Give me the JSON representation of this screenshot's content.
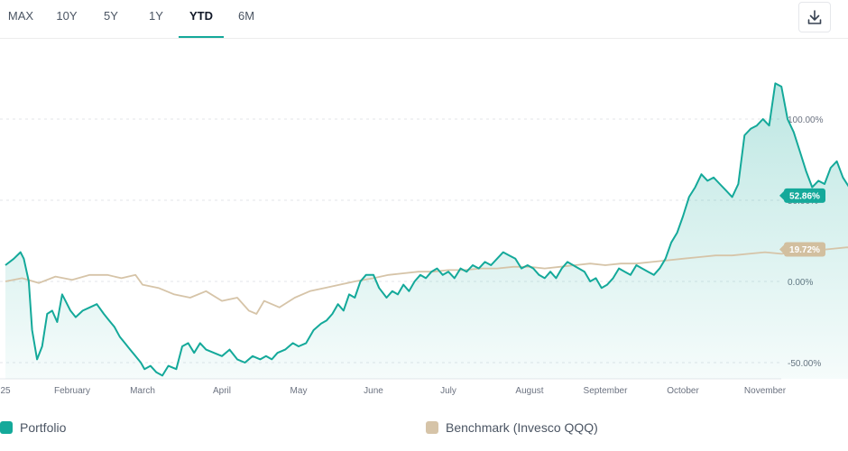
{
  "tabs": [
    {
      "label": "MAX",
      "active": false
    },
    {
      "label": "10Y",
      "active": false
    },
    {
      "label": "5Y",
      "active": false
    },
    {
      "label": "1Y",
      "active": false
    },
    {
      "label": "YTD",
      "active": true
    },
    {
      "label": "6M",
      "active": false
    }
  ],
  "toolbar": {
    "download_icon": "download-icon"
  },
  "colors": {
    "portfolio": "#14a99a",
    "benchmark": "#d6c4a8",
    "portfolio_badge": "#14a99a",
    "benchmark_badge": "#d2bf9f"
  },
  "chart_data": {
    "type": "line",
    "x_tick_labels": [
      "25",
      "February",
      "March",
      "April",
      "May",
      "June",
      "July",
      "August",
      "September",
      "October",
      "November"
    ],
    "y_tick_labels": [
      "100.00%",
      "50.00%",
      "0.00%",
      "-50.00%"
    ],
    "y_ticks": [
      100,
      50,
      0,
      -50
    ],
    "ylim": [
      -60,
      130
    ],
    "grid": true,
    "legend_position": "bottom",
    "series": [
      {
        "name": "Portfolio",
        "last_label": "52.86%",
        "last_value": 52.86,
        "points": [
          [
            0.0,
            10
          ],
          [
            0.25,
            14
          ],
          [
            0.45,
            18
          ],
          [
            0.55,
            14
          ],
          [
            0.7,
            0
          ],
          [
            0.8,
            -30
          ],
          [
            0.95,
            -48
          ],
          [
            1.1,
            -40
          ],
          [
            1.25,
            -20
          ],
          [
            1.4,
            -18
          ],
          [
            1.55,
            -25
          ],
          [
            1.7,
            -8
          ],
          [
            1.8,
            -12
          ],
          [
            1.95,
            -18
          ],
          [
            2.1,
            -22
          ],
          [
            2.3,
            -18
          ],
          [
            2.5,
            -16
          ],
          [
            2.7,
            -14
          ],
          [
            2.9,
            -20
          ],
          [
            3.05,
            -24
          ],
          [
            3.2,
            -28
          ],
          [
            3.35,
            -34
          ],
          [
            3.5,
            -38
          ],
          [
            3.65,
            -42
          ],
          [
            3.8,
            -46
          ],
          [
            3.95,
            -50
          ],
          [
            4.05,
            -54
          ],
          [
            4.2,
            -52
          ],
          [
            4.35,
            -56
          ],
          [
            4.5,
            -58
          ],
          [
            4.65,
            -52
          ],
          [
            4.85,
            -54
          ],
          [
            5.0,
            -40
          ],
          [
            5.15,
            -38
          ],
          [
            5.3,
            -44
          ],
          [
            5.45,
            -38
          ],
          [
            5.6,
            -42
          ],
          [
            5.8,
            -44
          ],
          [
            6.0,
            -46
          ],
          [
            6.2,
            -42
          ],
          [
            6.4,
            -48
          ],
          [
            6.6,
            -50
          ],
          [
            6.8,
            -46
          ],
          [
            7.0,
            -48
          ],
          [
            7.15,
            -46
          ],
          [
            7.3,
            -48
          ],
          [
            7.45,
            -44
          ],
          [
            7.65,
            -42
          ],
          [
            7.85,
            -38
          ],
          [
            8.0,
            -40
          ],
          [
            8.2,
            -38
          ],
          [
            8.4,
            -30
          ],
          [
            8.6,
            -26
          ],
          [
            8.75,
            -24
          ],
          [
            8.9,
            -20
          ],
          [
            9.05,
            -14
          ],
          [
            9.2,
            -18
          ],
          [
            9.35,
            -8
          ],
          [
            9.5,
            -10
          ],
          [
            9.65,
            0
          ],
          [
            9.8,
            4
          ],
          [
            10.0,
            4
          ],
          [
            10.15,
            -4
          ],
          [
            10.35,
            -10
          ],
          [
            10.5,
            -6
          ],
          [
            10.65,
            -8
          ],
          [
            10.8,
            -2
          ],
          [
            10.95,
            -6
          ],
          [
            11.1,
            0
          ],
          [
            11.25,
            4
          ],
          [
            11.4,
            2
          ],
          [
            11.55,
            6
          ],
          [
            11.7,
            8
          ],
          [
            11.85,
            4
          ],
          [
            12.0,
            6
          ],
          [
            12.15,
            2
          ],
          [
            12.3,
            8
          ],
          [
            12.45,
            6
          ],
          [
            12.6,
            10
          ],
          [
            12.75,
            8
          ],
          [
            12.9,
            12
          ],
          [
            13.05,
            10
          ],
          [
            13.2,
            14
          ],
          [
            13.35,
            18
          ],
          [
            13.5,
            16
          ],
          [
            13.65,
            14
          ],
          [
            13.8,
            8
          ],
          [
            13.95,
            10
          ],
          [
            14.1,
            8
          ],
          [
            14.25,
            4
          ],
          [
            14.4,
            2
          ],
          [
            14.55,
            6
          ],
          [
            14.7,
            2
          ],
          [
            14.85,
            8
          ],
          [
            15.0,
            12
          ],
          [
            15.15,
            10
          ],
          [
            15.3,
            8
          ],
          [
            15.45,
            6
          ],
          [
            15.6,
            0
          ],
          [
            15.75,
            2
          ],
          [
            15.9,
            -4
          ],
          [
            16.05,
            -2
          ],
          [
            16.2,
            2
          ],
          [
            16.35,
            8
          ],
          [
            16.5,
            6
          ],
          [
            16.65,
            4
          ],
          [
            16.8,
            10
          ],
          [
            16.95,
            8
          ],
          [
            17.1,
            6
          ],
          [
            17.25,
            4
          ],
          [
            17.4,
            8
          ],
          [
            17.55,
            14
          ],
          [
            17.7,
            24
          ],
          [
            17.85,
            30
          ],
          [
            18.0,
            40
          ],
          [
            18.15,
            52
          ],
          [
            18.3,
            58
          ],
          [
            18.45,
            66
          ],
          [
            18.6,
            62
          ],
          [
            18.75,
            64
          ],
          [
            18.9,
            60
          ],
          [
            19.05,
            56
          ],
          [
            19.2,
            52
          ],
          [
            19.35,
            60
          ],
          [
            19.5,
            90
          ],
          [
            19.65,
            94
          ],
          [
            19.8,
            96
          ],
          [
            19.95,
            100
          ],
          [
            20.1,
            96
          ],
          [
            20.25,
            122
          ],
          [
            20.4,
            120
          ],
          [
            20.55,
            100
          ],
          [
            20.7,
            92
          ],
          [
            20.85,
            80
          ],
          [
            21.0,
            68
          ],
          [
            21.15,
            58
          ],
          [
            21.3,
            62
          ],
          [
            21.45,
            60
          ],
          [
            21.6,
            70
          ],
          [
            21.75,
            74
          ],
          [
            21.9,
            64
          ],
          [
            22.05,
            58
          ],
          [
            22.2,
            52
          ],
          [
            22.35,
            55
          ],
          [
            22.5,
            53
          ],
          [
            22.6,
            52.86
          ]
        ]
      },
      {
        "name": "Benchmark (Invesco QQQ)",
        "last_label": "19.72%",
        "last_value": 19.72,
        "points": [
          [
            0.0,
            0
          ],
          [
            0.5,
            2
          ],
          [
            1.0,
            -1
          ],
          [
            1.5,
            3
          ],
          [
            2.0,
            1
          ],
          [
            2.5,
            4
          ],
          [
            3.0,
            4
          ],
          [
            3.4,
            2
          ],
          [
            3.8,
            4
          ],
          [
            4.0,
            -2
          ],
          [
            4.4,
            -4
          ],
          [
            4.8,
            -8
          ],
          [
            5.2,
            -10
          ],
          [
            5.6,
            -6
          ],
          [
            6.0,
            -12
          ],
          [
            6.4,
            -10
          ],
          [
            6.7,
            -18
          ],
          [
            6.9,
            -20
          ],
          [
            7.1,
            -12
          ],
          [
            7.5,
            -16
          ],
          [
            7.9,
            -10
          ],
          [
            8.3,
            -6
          ],
          [
            8.7,
            -4
          ],
          [
            9.1,
            -2
          ],
          [
            9.5,
            0
          ],
          [
            10.0,
            2
          ],
          [
            10.4,
            4
          ],
          [
            10.8,
            5
          ],
          [
            11.2,
            6
          ],
          [
            11.6,
            6
          ],
          [
            12.0,
            7
          ],
          [
            12.4,
            7
          ],
          [
            12.8,
            8
          ],
          [
            13.2,
            8
          ],
          [
            13.6,
            9
          ],
          [
            14.0,
            9
          ],
          [
            14.4,
            8
          ],
          [
            14.8,
            9
          ],
          [
            15.2,
            10
          ],
          [
            15.6,
            11
          ],
          [
            16.0,
            10
          ],
          [
            16.4,
            11
          ],
          [
            16.8,
            11
          ],
          [
            17.2,
            12
          ],
          [
            17.6,
            13
          ],
          [
            18.0,
            14
          ],
          [
            18.4,
            15
          ],
          [
            18.8,
            16
          ],
          [
            19.2,
            16
          ],
          [
            19.6,
            17
          ],
          [
            20.0,
            18
          ],
          [
            20.4,
            17
          ],
          [
            20.8,
            18
          ],
          [
            21.2,
            19
          ],
          [
            21.6,
            20
          ],
          [
            22.0,
            21
          ],
          [
            22.3,
            20
          ],
          [
            22.6,
            19.72
          ]
        ]
      }
    ]
  },
  "legend": [
    {
      "label": "Portfolio"
    },
    {
      "label": "Benchmark (Invesco QQQ)"
    }
  ]
}
